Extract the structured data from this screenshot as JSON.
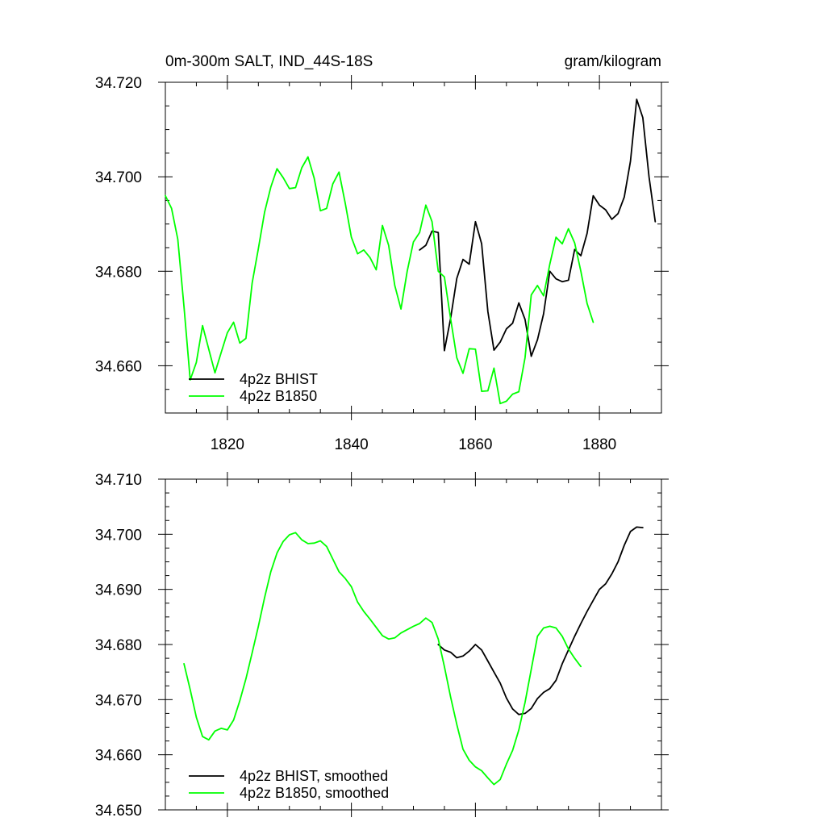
{
  "chart_data": [
    {
      "type": "line",
      "title_left": "0m-300m SALT, IND_44S-18S",
      "title_right": "gram/kilogram",
      "xlim": [
        1810,
        1890
      ],
      "ylim": [
        34.65,
        34.72
      ],
      "x_ticks": [
        1820,
        1840,
        1860,
        1880
      ],
      "x_tick_labels": [
        "1820",
        "1840",
        "1860",
        "1880"
      ],
      "y_ticks": [
        34.66,
        34.68,
        34.7,
        34.72
      ],
      "y_tick_labels": [
        "34.660",
        "34.680",
        "34.700",
        "34.720"
      ],
      "legend_position": "bottom-left",
      "series": [
        {
          "name": "4p2z BHIST",
          "color": "#000000",
          "x": [
            1851,
            1852,
            1853,
            1854,
            1855,
            1856,
            1857,
            1858,
            1859,
            1860,
            1861,
            1862,
            1863,
            1864,
            1865,
            1866,
            1867,
            1868,
            1869,
            1870,
            1871,
            1872,
            1873,
            1874,
            1875,
            1876,
            1877,
            1878,
            1879,
            1880,
            1881,
            1882,
            1883,
            1884,
            1885,
            1886,
            1887,
            1888,
            1889
          ],
          "y": [
            34.6845,
            34.6855,
            34.6885,
            34.6882,
            34.6632,
            34.67,
            34.6785,
            34.6825,
            34.6815,
            34.6905,
            34.6858,
            34.6715,
            34.6633,
            34.665,
            34.6678,
            34.669,
            34.6733,
            34.6698,
            34.662,
            34.6655,
            34.671,
            34.68,
            34.6784,
            34.6778,
            34.6781,
            34.6846,
            34.6833,
            34.688,
            34.696,
            34.694,
            34.693,
            34.691,
            34.6922,
            34.6957,
            34.7033,
            34.7164,
            34.7125,
            34.7,
            34.6905
          ]
        },
        {
          "name": "4p2z B1850",
          "color": "#00ff00",
          "x": [
            1810,
            1811,
            1812,
            1813,
            1814,
            1815,
            1816,
            1817,
            1818,
            1819,
            1820,
            1821,
            1822,
            1823,
            1824,
            1825,
            1826,
            1827,
            1828,
            1829,
            1830,
            1831,
            1832,
            1833,
            1834,
            1835,
            1836,
            1837,
            1838,
            1839,
            1840,
            1841,
            1842,
            1843,
            1844,
            1845,
            1846,
            1847,
            1848,
            1849,
            1850,
            1851,
            1852,
            1853,
            1854,
            1855,
            1856,
            1857,
            1858,
            1859,
            1860,
            1861,
            1862,
            1863,
            1864,
            1865,
            1866,
            1867,
            1868,
            1869,
            1870,
            1871,
            1872,
            1873,
            1874,
            1875,
            1876,
            1877,
            1878,
            1879
          ],
          "y": [
            34.696,
            34.6933,
            34.6868,
            34.6725,
            34.657,
            34.6607,
            34.6685,
            34.6635,
            34.6585,
            34.6628,
            34.667,
            34.6692,
            34.6648,
            34.6658,
            34.6775,
            34.6848,
            34.6925,
            34.6978,
            34.7017,
            34.6998,
            34.6975,
            34.6977,
            34.7019,
            34.7042,
            34.6997,
            34.6928,
            34.6933,
            34.6985,
            34.701,
            34.6945,
            34.6872,
            34.6837,
            34.6845,
            34.6829,
            34.6803,
            34.6897,
            34.6855,
            34.677,
            34.672,
            34.68,
            34.6862,
            34.6882,
            34.694,
            34.6905,
            34.68,
            34.6788,
            34.67,
            34.6617,
            34.6584,
            34.6636,
            34.6635,
            34.6546,
            34.6547,
            34.6595,
            34.652,
            34.6525,
            34.654,
            34.6545,
            34.6617,
            34.675,
            34.677,
            34.6748,
            34.6815,
            34.6872,
            34.6858,
            34.689,
            34.686,
            34.68,
            34.6732,
            34.6692
          ]
        }
      ]
    },
    {
      "type": "line",
      "xlim": [
        1810,
        1890
      ],
      "ylim": [
        34.65,
        34.71
      ],
      "x_ticks": [
        1820,
        1840,
        1860,
        1880
      ],
      "y_ticks": [
        34.65,
        34.66,
        34.67,
        34.68,
        34.69,
        34.7,
        34.71
      ],
      "y_tick_labels": [
        "34.650",
        "34.660",
        "34.670",
        "34.680",
        "34.690",
        "34.700",
        "34.710"
      ],
      "legend_position": "bottom-left",
      "series": [
        {
          "name": "4p2z BHIST, smoothed",
          "color": "#000000",
          "x": [
            1854,
            1855,
            1856,
            1857,
            1858,
            1859,
            1860,
            1861,
            1862,
            1863,
            1864,
            1865,
            1866,
            1867,
            1868,
            1869,
            1870,
            1871,
            1872,
            1873,
            1874,
            1875,
            1876,
            1877,
            1878,
            1879,
            1880,
            1881,
            1882,
            1883,
            1884,
            1885,
            1886,
            1887
          ],
          "y": [
            34.68,
            34.679,
            34.6786,
            34.6776,
            34.6779,
            34.6788,
            34.68,
            34.679,
            34.677,
            34.675,
            34.673,
            34.6703,
            34.6683,
            34.6673,
            34.6675,
            34.6684,
            34.6702,
            34.6713,
            34.672,
            34.6735,
            34.6765,
            34.679,
            34.6815,
            34.6838,
            34.686,
            34.688,
            34.69,
            34.691,
            34.6928,
            34.695,
            34.698,
            34.7005,
            34.7013,
            34.7012
          ]
        },
        {
          "name": "4p2z B1850, smoothed",
          "color": "#00ff00",
          "x": [
            1813,
            1814,
            1815,
            1816,
            1817,
            1818,
            1819,
            1820,
            1821,
            1822,
            1823,
            1824,
            1825,
            1826,
            1827,
            1828,
            1829,
            1830,
            1831,
            1832,
            1833,
            1834,
            1835,
            1836,
            1837,
            1838,
            1839,
            1840,
            1841,
            1842,
            1843,
            1844,
            1845,
            1846,
            1847,
            1848,
            1849,
            1850,
            1851,
            1852,
            1853,
            1854,
            1855,
            1856,
            1857,
            1858,
            1859,
            1860,
            1861,
            1862,
            1863,
            1864,
            1865,
            1866,
            1867,
            1868,
            1869,
            1870,
            1871,
            1872,
            1873,
            1874,
            1875,
            1876,
            1877
          ],
          "y": [
            34.6765,
            34.6718,
            34.6668,
            34.6633,
            34.6627,
            34.6643,
            34.6648,
            34.6645,
            34.6663,
            34.6698,
            34.6738,
            34.6785,
            34.6833,
            34.6885,
            34.6932,
            34.6966,
            34.6987,
            34.6999,
            34.7003,
            34.699,
            34.6983,
            34.6984,
            34.6988,
            34.6978,
            34.6955,
            34.6932,
            34.692,
            34.6905,
            34.6877,
            34.686,
            34.6846,
            34.6831,
            34.6816,
            34.681,
            34.6812,
            34.6821,
            34.6827,
            34.6833,
            34.6838,
            34.6848,
            34.684,
            34.681,
            34.676,
            34.6705,
            34.6655,
            34.661,
            34.659,
            34.6578,
            34.6571,
            34.6558,
            34.6546,
            34.6555,
            34.6583,
            34.6608,
            34.6645,
            34.6695,
            34.6755,
            34.6815,
            34.683,
            34.6833,
            34.683,
            34.6815,
            34.6792,
            34.6775,
            34.676
          ]
        }
      ]
    }
  ]
}
